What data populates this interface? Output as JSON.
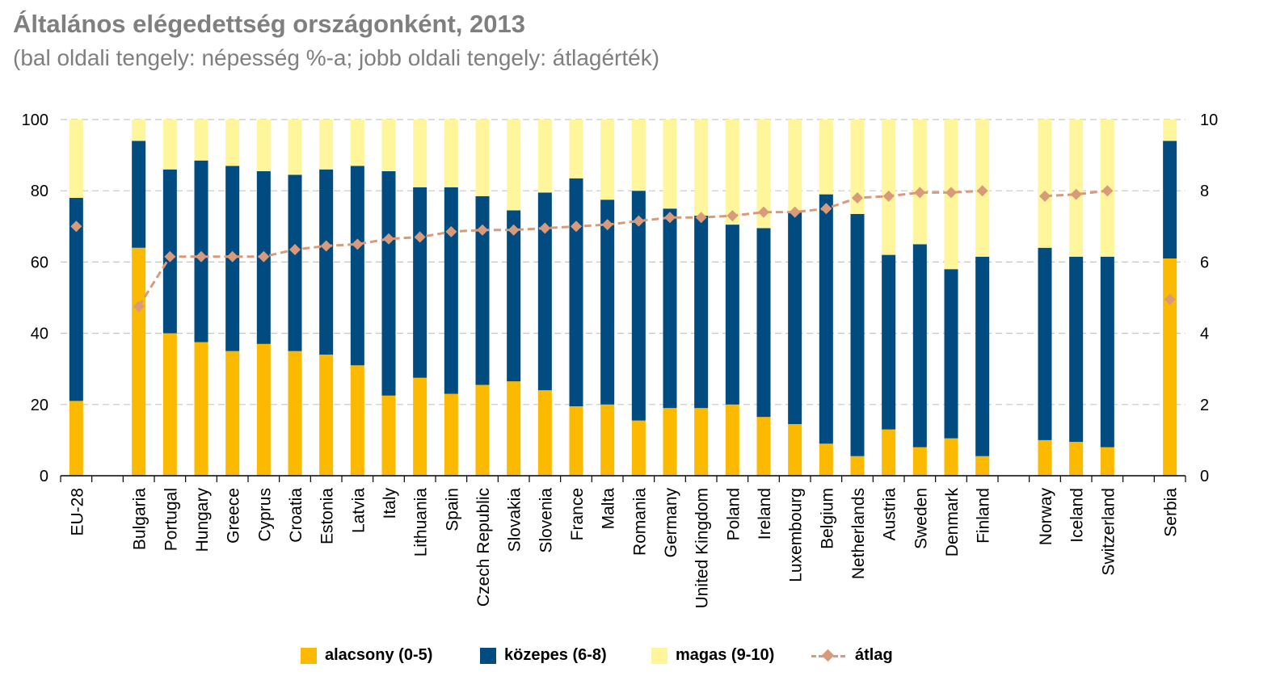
{
  "chart_data": {
    "type": "bar",
    "stacked": true,
    "title": "Általános elégedettség országonként, 2013",
    "subtitle": "(bal oldali tengely: népesség %-a; jobb oldali tengely: átlagérték)",
    "y_left": {
      "range": [
        0,
        100
      ],
      "ticks": [
        "0",
        "20",
        "40",
        "60",
        "80",
        "100"
      ]
    },
    "y_right": {
      "range": [
        0,
        10
      ],
      "ticks": [
        "0",
        "2",
        "4",
        "6",
        "8",
        "10"
      ]
    },
    "grid": true,
    "legend_position": "bottom",
    "categories": [
      "EU-28",
      "",
      "Bulgaria",
      "Portugal",
      "Hungary",
      "Greece",
      "Cyprus",
      "Croatia",
      "Estonia",
      "Latvia",
      "Italy",
      "Lithuania",
      "Spain",
      "Czech Republic",
      "Slovakia",
      "Slovenia",
      "France",
      "Malta",
      "Romania",
      "Germany",
      "United Kingdom",
      "Poland",
      "Ireland",
      "Luxembourg",
      "Belgium",
      "Netherlands",
      "Austria",
      "Sweden",
      "Denmark",
      "Finland",
      "",
      "Norway",
      "Iceland",
      "Switzerland",
      "",
      "Serbia"
    ],
    "series": [
      {
        "name": "alacsony (0-5)",
        "color": "#fbb900",
        "values": [
          21,
          null,
          64,
          40,
          37.5,
          35,
          37,
          35,
          34,
          31,
          22.5,
          27.5,
          23,
          25.5,
          26.5,
          24,
          19.5,
          20,
          15.5,
          19,
          19,
          20,
          16.5,
          14.5,
          9,
          5.5,
          13,
          8,
          10.5,
          5.5,
          null,
          10,
          9.5,
          8,
          null,
          61
        ]
      },
      {
        "name": "közepes (6-8)",
        "color": "#004b7f",
        "values": [
          57,
          null,
          30,
          46,
          51,
          52,
          48.5,
          49.5,
          52,
          56,
          63,
          53.5,
          58,
          53,
          48,
          55.5,
          64,
          57.5,
          64.5,
          56,
          54,
          50.5,
          53,
          59.5,
          70,
          68,
          49,
          57,
          47.5,
          56,
          null,
          54,
          52,
          53.5,
          null,
          33
        ]
      },
      {
        "name": "magas (9-10)",
        "color": "#fff59b",
        "values": [
          22,
          null,
          6,
          14,
          11.5,
          13,
          14.5,
          15.5,
          14,
          13,
          14.5,
          19,
          19,
          21.5,
          25.5,
          20.5,
          16.5,
          22.5,
          20,
          25,
          27,
          29.5,
          30.5,
          26,
          21,
          26.5,
          38,
          35,
          42,
          38.5,
          null,
          36,
          38.5,
          38.5,
          null,
          6
        ]
      }
    ],
    "line": {
      "name": "átlag",
      "color": "#d89a7a",
      "axis": "right",
      "values": [
        7.0,
        null,
        4.75,
        6.15,
        6.15,
        6.15,
        6.15,
        6.35,
        6.45,
        6.5,
        6.65,
        6.7,
        6.85,
        6.9,
        6.9,
        6.95,
        7.0,
        7.05,
        7.15,
        7.25,
        7.25,
        7.3,
        7.4,
        7.4,
        7.5,
        7.8,
        7.85,
        7.95,
        7.95,
        8.0,
        null,
        7.85,
        7.9,
        8.0,
        null,
        4.95
      ]
    }
  },
  "legend": [
    {
      "label": "alacsony (0-5)",
      "kind": "box",
      "color": "#fbb900"
    },
    {
      "label": "közepes (6-8)",
      "kind": "box",
      "color": "#004b7f"
    },
    {
      "label": "magas (9-10)",
      "kind": "box",
      "color": "#fff59b"
    },
    {
      "label": "átlag",
      "kind": "line",
      "color": "#d89a7a"
    }
  ]
}
